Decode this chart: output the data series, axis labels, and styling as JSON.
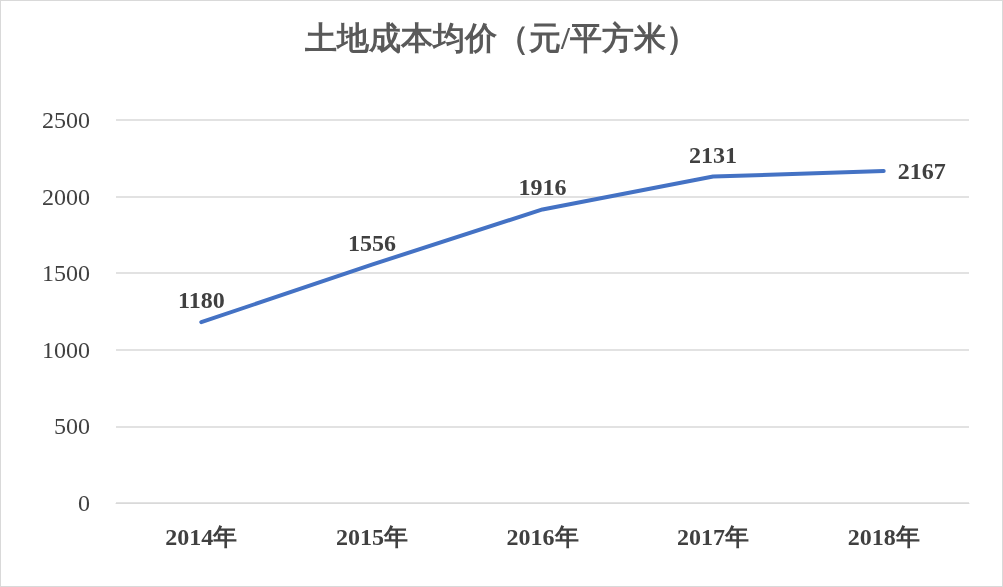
{
  "chart_data": {
    "type": "line",
    "title": "土地成本均价（元/平方米）",
    "categories": [
      "2014年",
      "2015年",
      "2016年",
      "2017年",
      "2018年"
    ],
    "series": [
      {
        "color": "#4472c4",
        "values": [
          1180,
          1556,
          1916,
          2131,
          2167
        ]
      }
    ],
    "ylim": [
      0,
      2500
    ],
    "yticks": [
      0,
      500,
      1000,
      1500,
      2000,
      2500
    ],
    "data_labels": true,
    "grid": "y",
    "marker": "none",
    "line_style": "solid"
  }
}
